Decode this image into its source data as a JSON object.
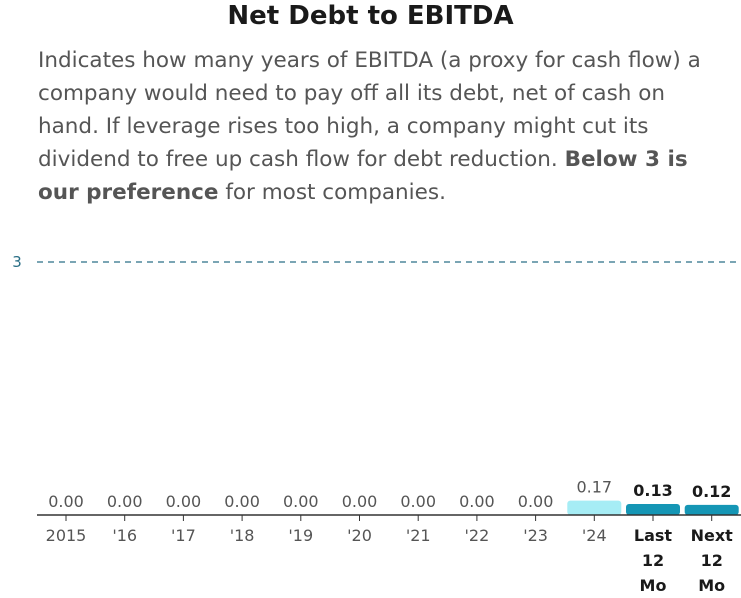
{
  "header": {
    "title": "Net Debt to EBITDA",
    "description_plain": "Indicates how many years of EBITDA (a proxy for cash flow) a company would need to pay off all its debt, net of cash on hand. If leverage rises too high, a company might cut its dividend to free up cash flow for debt reduction. ",
    "description_bold": "Below 3 is our preference",
    "description_tail": " for most companies."
  },
  "colors": {
    "historical_bar": "#a6edf5",
    "estimate_bar": "#1596b5",
    "reference_line": "#2a6f86",
    "axis": "#333333",
    "text": "#555555"
  },
  "chart_data": {
    "type": "bar",
    "title": "Net Debt to EBITDA",
    "categories": [
      "2015",
      "'16",
      "'17",
      "'18",
      "'19",
      "'20",
      "'21",
      "'22",
      "'23",
      "'24",
      "Last 12 Mo",
      "Next 12 Mo"
    ],
    "values": [
      0.0,
      0.0,
      0.0,
      0.0,
      0.0,
      0.0,
      0.0,
      0.0,
      0.0,
      0.17,
      0.13,
      0.12
    ],
    "value_labels": [
      "0.00",
      "0.00",
      "0.00",
      "0.00",
      "0.00",
      "0.00",
      "0.00",
      "0.00",
      "0.00",
      "0.17",
      "0.13",
      "0.12"
    ],
    "category_lines": [
      [
        "2015"
      ],
      [
        "'16"
      ],
      [
        "'17"
      ],
      [
        "'18"
      ],
      [
        "'19"
      ],
      [
        "'20"
      ],
      [
        "'21"
      ],
      [
        "'22"
      ],
      [
        "'23"
      ],
      [
        "'24"
      ],
      [
        "Last",
        "12",
        "Mo"
      ],
      [
        "Next",
        "12",
        "Mo"
      ]
    ],
    "highlighted": [
      false,
      false,
      false,
      false,
      false,
      false,
      false,
      false,
      false,
      false,
      true,
      true
    ],
    "reference_line": {
      "value": 3,
      "label": "3"
    },
    "ylim": [
      0,
      3.3
    ],
    "xlabel": "",
    "ylabel": ""
  }
}
